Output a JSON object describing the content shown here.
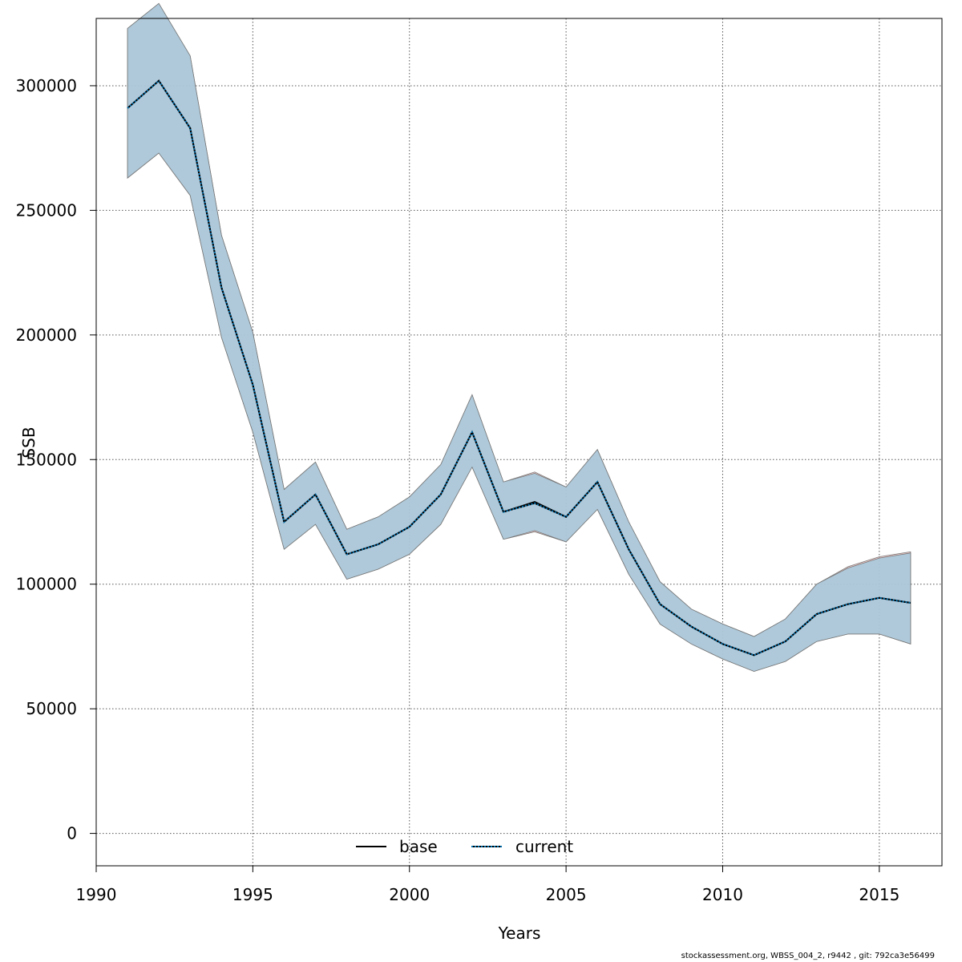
{
  "chart_data": {
    "type": "line",
    "title": "",
    "xlabel": "Years",
    "ylabel": "SSB",
    "xlim": [
      1990,
      2017
    ],
    "ylim": [
      -13000,
      327000
    ],
    "x_ticks": [
      1990,
      1995,
      2000,
      2005,
      2010,
      2015
    ],
    "y_ticks": [
      0,
      50000,
      100000,
      150000,
      200000,
      250000,
      300000
    ],
    "grid": true,
    "legend_position": "bottom",
    "x": [
      1991,
      1992,
      1993,
      1994,
      1995,
      1996,
      1997,
      1998,
      1999,
      2000,
      2001,
      2002,
      2003,
      2004,
      2005,
      2006,
      2007,
      2008,
      2009,
      2010,
      2011,
      2012,
      2013,
      2014,
      2015,
      2016
    ],
    "series": [
      {
        "name": "base",
        "line_style": "solid",
        "color": "#000000",
        "values": [
          291000,
          302000,
          283000,
          219000,
          180000,
          125000,
          136000,
          112000,
          116000,
          123000,
          136000,
          161000,
          129000,
          133000,
          127000,
          141000,
          114000,
          92000,
          83000,
          76000,
          71500,
          77000,
          88000,
          92000,
          94500,
          92500
        ],
        "upper": [
          323000,
          333000,
          312000,
          240000,
          201000,
          138000,
          149000,
          122000,
          127000,
          135000,
          148000,
          176000,
          141000,
          145000,
          139000,
          154000,
          125000,
          101000,
          90000,
          84000,
          79000,
          86000,
          100000,
          107000,
          111000,
          113000
        ],
        "lower": [
          263000,
          273000,
          256000,
          199000,
          161000,
          114000,
          124000,
          102000,
          106000,
          112000,
          124000,
          147000,
          118000,
          121000,
          117000,
          130000,
          104000,
          84000,
          76000,
          70000,
          65000,
          69000,
          77000,
          80000,
          80000,
          76000
        ]
      },
      {
        "name": "current",
        "line_style": "dotted",
        "color": "#0072B2",
        "values": [
          291000,
          302000,
          283000,
          219000,
          180000,
          125000,
          136000,
          112000,
          116000,
          123000,
          136000,
          161000,
          129000,
          132500,
          127000,
          141000,
          114000,
          92000,
          83000,
          76000,
          71500,
          77000,
          88000,
          92000,
          94500,
          92500
        ],
        "upper": [
          323000,
          333000,
          312000,
          240000,
          201000,
          138000,
          149000,
          122000,
          127000,
          135000,
          148000,
          176000,
          141000,
          144500,
          139000,
          154000,
          125000,
          101000,
          90000,
          84000,
          79000,
          86000,
          100000,
          106500,
          110500,
          112500
        ],
        "lower": [
          263000,
          273000,
          256000,
          199000,
          161000,
          114000,
          124000,
          102000,
          106000,
          112000,
          124000,
          147000,
          118000,
          121500,
          117000,
          130000,
          104000,
          84000,
          76000,
          70000,
          65000,
          69000,
          77000,
          80000,
          80000,
          76000
        ]
      }
    ],
    "band_colors": [
      "#F5A3A3",
      "#A6C9DC"
    ]
  },
  "footer": "stockassessment.org, WBSS_004_2, r9442 , git: 792ca3e56499"
}
